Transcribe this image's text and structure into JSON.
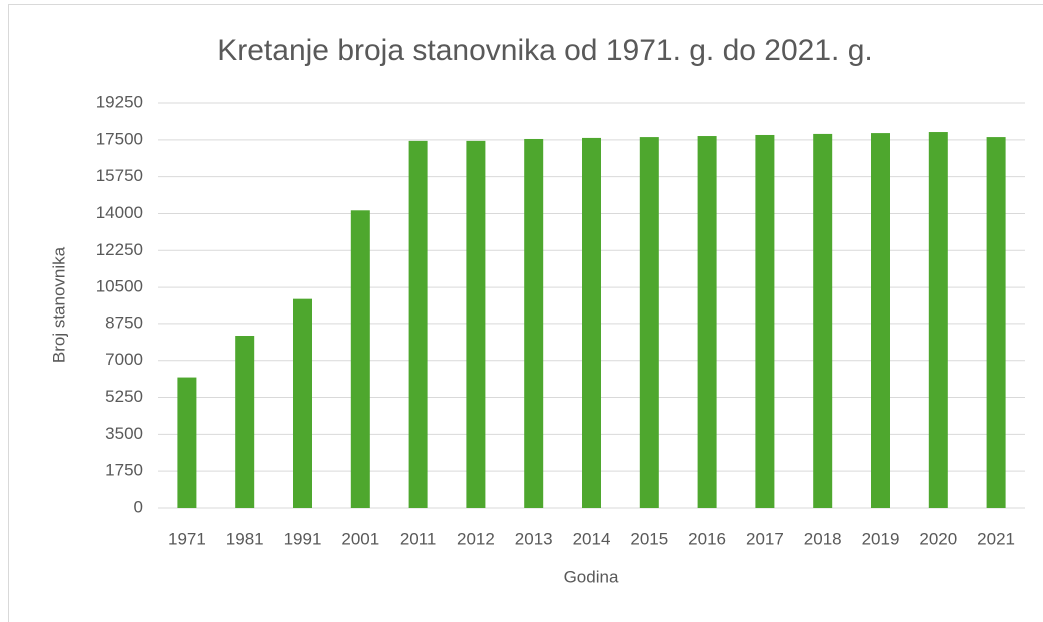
{
  "chart_data": {
    "type": "bar",
    "title": "Kretanje broja stanovnika od 1971. g. do 2021. g.",
    "x_label": "Godina",
    "y_label": "Broj stanovnika",
    "categories": [
      "1971",
      "1981",
      "1991",
      "2001",
      "2011",
      "2012",
      "2013",
      "2014",
      "2015",
      "2016",
      "2017",
      "2018",
      "2019",
      "2020",
      "2021"
    ],
    "values": [
      6200,
      8175,
      9950,
      14150,
      17450,
      17450,
      17540,
      17590,
      17630,
      17680,
      17730,
      17780,
      17820,
      17870,
      17630
    ],
    "color": "#4ea72e",
    "ylim": [
      0,
      19250
    ],
    "yticks": [
      0,
      1750,
      3500,
      5250,
      7000,
      8750,
      10500,
      12250,
      14000,
      15750,
      17500,
      19250
    ],
    "grid": true
  }
}
